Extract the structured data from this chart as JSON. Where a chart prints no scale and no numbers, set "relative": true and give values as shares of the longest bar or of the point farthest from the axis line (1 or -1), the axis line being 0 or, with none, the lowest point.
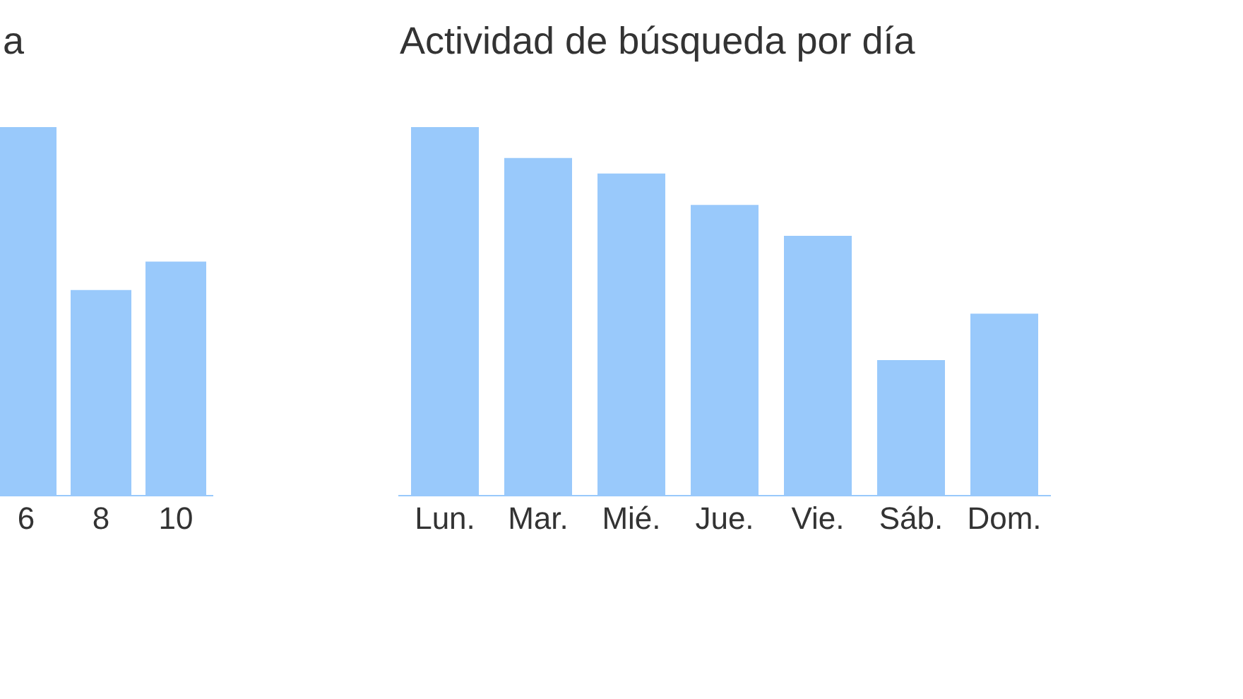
{
  "chart_data": [
    {
      "type": "bar",
      "title": "a",
      "categories": [
        "6",
        "8",
        "10"
      ],
      "values": [
        1,
        0.558,
        0.635
      ],
      "color": "#99c9fb",
      "relative": true,
      "grid": false,
      "legend": false
    },
    {
      "type": "bar",
      "title": "Actividad de búsqueda por día",
      "categories": [
        "Lun.",
        "Mar.",
        "Mié.",
        "Jue.",
        "Vie.",
        "Sáb.",
        "Dom."
      ],
      "values": [
        1,
        0.916,
        0.874,
        0.789,
        0.705,
        0.368,
        0.494
      ],
      "color": "#99c9fb",
      "relative": true,
      "grid": false,
      "legend": false
    }
  ]
}
